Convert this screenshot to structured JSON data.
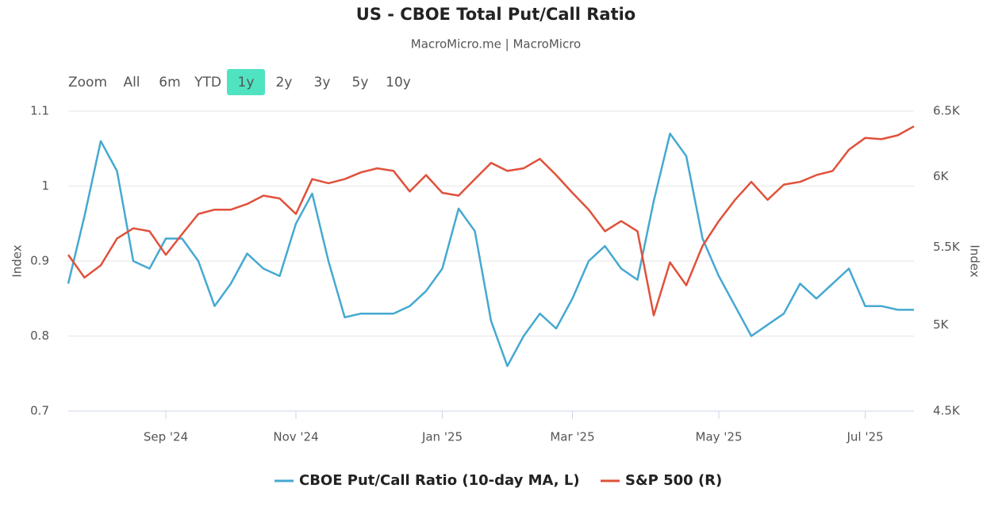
{
  "chart_data": {
    "type": "line",
    "title": "US - CBOE Total Put/Call Ratio",
    "subtitle": "MacroMicro.me | MacroMicro",
    "range_selector": {
      "label": "Zoom",
      "buttons": [
        "All",
        "6m",
        "YTD",
        "1y",
        "2y",
        "3y",
        "5y",
        "10y"
      ],
      "selected": 3,
      "selected_color": "#4fe3c1"
    },
    "ylabel": "Index",
    "y2label": "Index",
    "categories": [
      null,
      null,
      null,
      null,
      null,
      null,
      "Sep '24",
      null,
      null,
      null,
      null,
      null,
      null,
      null,
      "Nov '24",
      null,
      null,
      null,
      null,
      null,
      null,
      null,
      null,
      "Jan '25",
      null,
      null,
      null,
      null,
      null,
      null,
      null,
      "Mar '25",
      null,
      null,
      null,
      null,
      null,
      null,
      null,
      null,
      "May '25",
      null,
      null,
      null,
      null,
      null,
      null,
      null,
      null,
      "Jul '25",
      null,
      null,
      null
    ],
    "series": [
      {
        "name": "CBOE Put/Call Ratio (10-day MA, L)",
        "color": "#45a9d1",
        "values": [
          0.87,
          0.96,
          1.06,
          1.02,
          0.9,
          0.89,
          0.93,
          0.93,
          0.9,
          0.84,
          0.87,
          0.91,
          0.89,
          0.88,
          0.95,
          0.99,
          0.9,
          0.825,
          0.83,
          0.83,
          0.83,
          0.84,
          0.86,
          0.89,
          0.97,
          0.94,
          0.82,
          0.76,
          0.8,
          0.83,
          0.81,
          0.85,
          0.9,
          0.92,
          0.89,
          0.875,
          0.98,
          1.07,
          1.04,
          0.93,
          0.88,
          0.84,
          0.8,
          0.815,
          0.83,
          0.87,
          0.85,
          0.87,
          0.89,
          0.84,
          0.84,
          0.835,
          0.835
        ]
      },
      {
        "name": "S&P 500 (R)",
        "color": "#e0513b",
        "axis": "y2",
        "values": [
          5450,
          5300,
          5380,
          5560,
          5630,
          5610,
          5450,
          5590,
          5730,
          5760,
          5760,
          5800,
          5860,
          5840,
          5730,
          5980,
          5950,
          5980,
          6030,
          6060,
          6040,
          5890,
          6010,
          5880,
          5860,
          5980,
          6100,
          6040,
          6060,
          6130,
          6010,
          5880,
          5760,
          5610,
          5680,
          5610,
          5060,
          5400,
          5250,
          5510,
          5680,
          5830,
          5960,
          5830,
          5940,
          5960,
          6010,
          6040,
          6200,
          6290,
          6280,
          6310,
          6380
        ]
      }
    ],
    "ylim": [
      0.7,
      1.1
    ],
    "yticks": [
      0.7,
      0.8,
      0.9,
      1,
      1.1
    ],
    "y2lim": [
      4500,
      6500
    ],
    "y2log": true,
    "y2ticks": [
      {
        "value": 4500,
        "label": "4.5K"
      },
      {
        "value": 5000,
        "label": "5K"
      },
      {
        "value": 5500,
        "label": "5.5K"
      },
      {
        "value": 6000,
        "label": "6K"
      },
      {
        "value": 6500,
        "label": "6.5K"
      }
    ],
    "grid": true,
    "legend": "bottom"
  }
}
